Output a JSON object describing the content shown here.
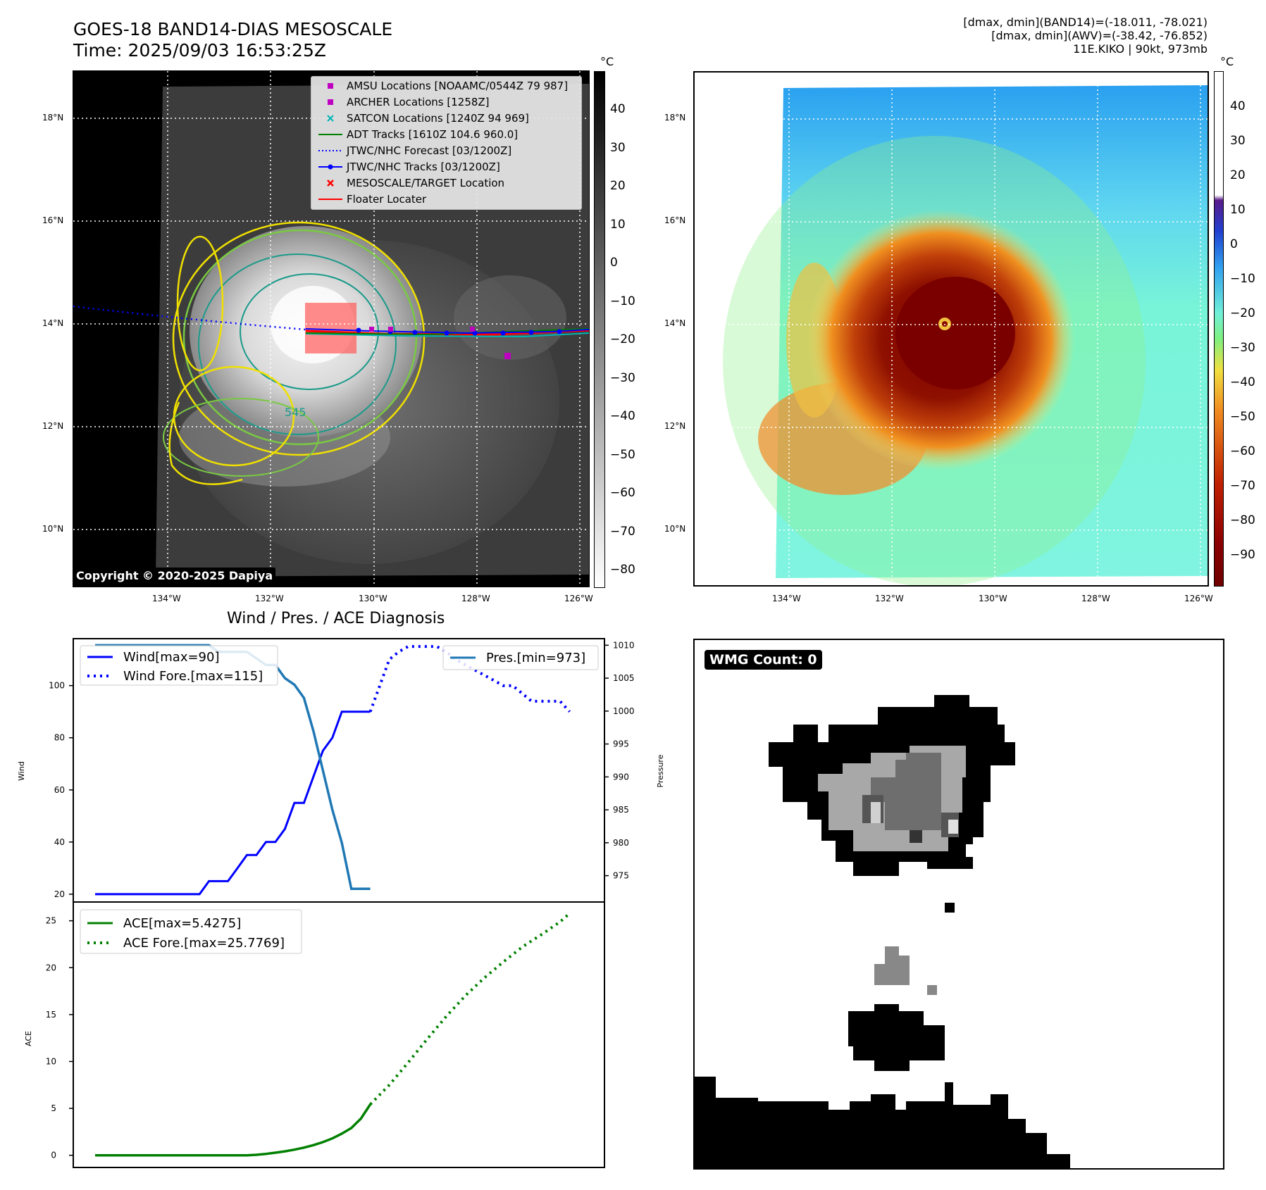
{
  "header": {
    "title": "GOES-18 BAND14-DIAS MESOSCALE",
    "time": "Time: 2025/09/03 16:53:25Z",
    "info_line1": "[dmax, dmin](BAND14)=(-18.011, -78.021)",
    "info_line2": "[dmax, dmin](AWV)=(-38.42, -76.852)",
    "info_line3": "11E.KIKO | 90kt, 973mb"
  },
  "map": {
    "lat_labels": [
      "18°N",
      "16°N",
      "14°N",
      "12°N",
      "10°N"
    ],
    "lon_labels": [
      "134°W",
      "132°W",
      "130°W",
      "128°W",
      "126°W"
    ],
    "copyright": "Copyright © 2020-2025 Dapiya",
    "contour_label": "545",
    "legend": [
      {
        "label": "AMSU Locations [NOAAMC/0544Z 79 987]",
        "marker": "square",
        "color": "#c000c0"
      },
      {
        "label": "ARCHER Locations [1258Z]",
        "marker": "square",
        "color": "#c000c0"
      },
      {
        "label": "SATCON Locations [1240Z 94 969]",
        "marker": "x",
        "color": "#00b4b4"
      },
      {
        "label": "ADT Tracks [1610Z 104.6 960.0]",
        "marker": "line",
        "color": "#008000"
      },
      {
        "label": "JTWC/NHC Forecast [03/1200Z]",
        "marker": "dotted",
        "color": "#0000ff"
      },
      {
        "label": "JTWC/NHC Tracks [03/1200Z]",
        "marker": "line-dot",
        "color": "#0000ff"
      },
      {
        "label": "MESOSCALE/TARGET Location",
        "marker": "x",
        "color": "#ff0000"
      },
      {
        "label": "Floater Locater",
        "marker": "line",
        "color": "#ff0000"
      }
    ]
  },
  "colorbar_left": {
    "unit": "°C",
    "ticks": [
      "40",
      "30",
      "20",
      "10",
      "0",
      "−10",
      "−20",
      "−30",
      "−40",
      "−50",
      "−60",
      "−70",
      "−80"
    ]
  },
  "colorbar_right": {
    "unit": "°C",
    "ticks": [
      "40",
      "30",
      "20",
      "10",
      "0",
      "−10",
      "−20",
      "−30",
      "−40",
      "−50",
      "−60",
      "−70",
      "−80",
      "−90"
    ]
  },
  "diagnosis": {
    "title": "Wind / Pres. / ACE Diagnosis",
    "wind_ylabel": "Wind",
    "pres_ylabel": "Pressure",
    "ace_ylabel": "ACE",
    "legend_wind": "Wind[max=90]",
    "legend_wind_fore": "Wind Fore.[max=115]",
    "legend_pres": "Pres.[min=973]",
    "legend_ace": "ACE[max=5.4275]",
    "legend_ace_fore": "ACE Fore.[max=25.7769]"
  },
  "wmg": {
    "badge": "WMG Count: 0"
  },
  "chart_data": [
    {
      "type": "line",
      "title": "Wind / Pres. / ACE Diagnosis",
      "ylabel": "Wind",
      "ylim": [
        17,
        118
      ],
      "xlim": [
        0,
        51
      ],
      "series": [
        {
          "name": "Wind[max=90]",
          "color": "#0000ff",
          "style": "solid",
          "x": [
            0,
            1,
            2,
            3,
            4,
            5,
            6,
            7,
            8,
            9,
            10,
            11,
            12,
            13,
            14,
            15,
            16,
            17,
            18,
            19,
            20,
            21,
            22,
            23,
            24,
            25,
            26,
            27,
            28,
            29
          ],
          "values": [
            20,
            20,
            20,
            20,
            20,
            20,
            20,
            20,
            20,
            20,
            20,
            20,
            25,
            25,
            25,
            30,
            35,
            35,
            40,
            40,
            45,
            55,
            55,
            65,
            75,
            80,
            90,
            90,
            90,
            90
          ]
        },
        {
          "name": "Wind Fore.[max=115]",
          "color": "#0000ff",
          "style": "dotted",
          "x": [
            29,
            30,
            31,
            32,
            33,
            34,
            35,
            36,
            37,
            38,
            39,
            40,
            41,
            42,
            43,
            44,
            45,
            46,
            47,
            48,
            49,
            50
          ],
          "values": [
            90,
            100,
            110,
            113,
            115,
            115,
            115,
            115,
            113,
            110,
            108,
            106,
            104,
            102,
            100,
            100,
            97,
            94,
            94,
            94,
            94,
            90
          ]
        }
      ]
    },
    {
      "type": "line",
      "ylabel": "Pressure",
      "ylim": [
        971,
        1011
      ],
      "xlim": [
        0,
        51
      ],
      "series": [
        {
          "name": "Pres.[min=973]",
          "color": "#1f77b4",
          "style": "solid",
          "x": [
            0,
            1,
            2,
            3,
            4,
            5,
            6,
            7,
            8,
            9,
            10,
            11,
            12,
            13,
            14,
            15,
            16,
            17,
            18,
            19,
            20,
            21,
            22,
            23,
            24,
            25,
            26,
            27,
            28,
            29
          ],
          "values": [
            1010,
            1010,
            1010,
            1010,
            1010,
            1010,
            1010,
            1010,
            1010,
            1010,
            1010,
            1010,
            1010,
            1009,
            1009,
            1009,
            1009,
            1008,
            1007,
            1007,
            1005,
            1004,
            1002,
            997,
            991,
            985,
            980,
            973,
            973,
            973
          ]
        }
      ]
    },
    {
      "type": "line",
      "ylabel": "ACE",
      "ylim": [
        -1.3,
        27
      ],
      "xlim": [
        0,
        51
      ],
      "series": [
        {
          "name": "ACE[max=5.4275]",
          "color": "#008000",
          "style": "solid",
          "x": [
            0,
            2,
            4,
            6,
            8,
            10,
            12,
            14,
            16,
            17,
            18,
            19,
            20,
            21,
            22,
            23,
            24,
            25,
            26,
            27,
            28,
            29
          ],
          "values": [
            0,
            0,
            0,
            0,
            0,
            0,
            0,
            0,
            0,
            0.05,
            0.15,
            0.28,
            0.42,
            0.6,
            0.82,
            1.08,
            1.4,
            1.8,
            2.3,
            2.9,
            3.9,
            5.4275
          ]
        },
        {
          "name": "ACE Fore.[max=25.7769]",
          "color": "#008000",
          "style": "dotted",
          "x": [
            29,
            31,
            33,
            35,
            37,
            39,
            41,
            43,
            45,
            47,
            49,
            50
          ],
          "values": [
            5.4275,
            7.5,
            9.9,
            12.4,
            14.8,
            17.0,
            18.9,
            20.6,
            22.2,
            23.5,
            24.9,
            25.7769
          ]
        }
      ]
    }
  ]
}
